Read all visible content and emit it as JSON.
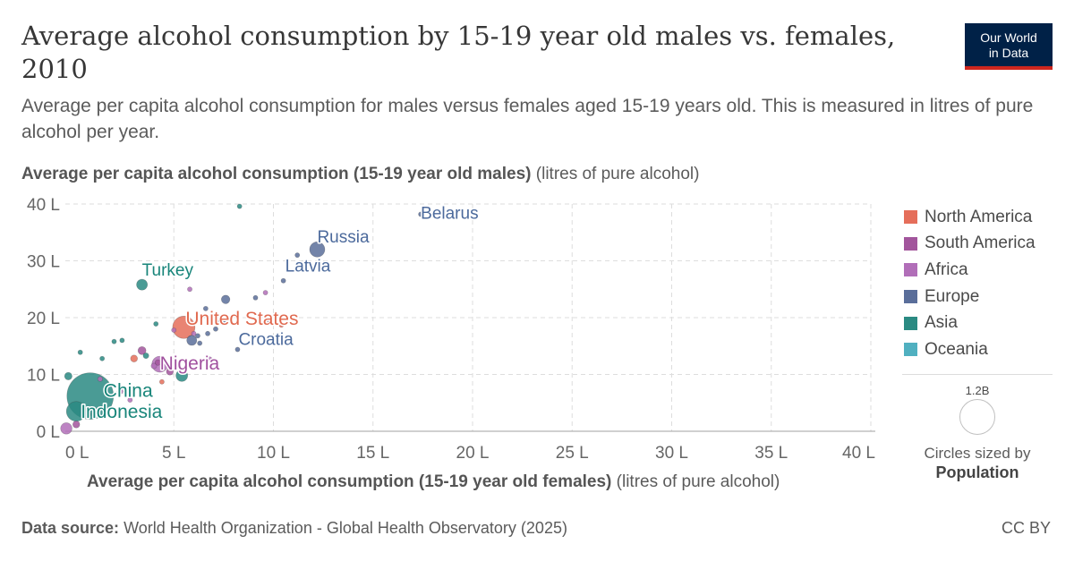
{
  "title": "Average alcohol consumption by 15-19 year old males vs. females, 2010",
  "subtitle": "Average per capita alcohol consumption for males versus females aged 15-19 years old. This is measured in litres of pure alcohol per year.",
  "logo": {
    "line1": "Our World",
    "line2": "in Data"
  },
  "footer": {
    "source_label": "Data source:",
    "source_text": "World Health Organization - Global Health Observatory (2025)",
    "license": "CC BY"
  },
  "size_legend": {
    "value": "1.2B",
    "text": "Circles sized by",
    "variable": "Population"
  },
  "colors": {
    "North America": "#e56e5a",
    "South America": "#a2559c",
    "Africa": "#b16eb8",
    "Europe": "#5a6e9a",
    "Asia": "#2a8a82",
    "Oceania": "#50b0c0"
  },
  "chart_data": {
    "type": "scatter",
    "title": "Average alcohol consumption by 15-19 year old males vs. females, 2010",
    "xlabel_bold": "Average per capita alcohol consumption (15-19 year old females)",
    "xlabel_unit": "(litres of pure alcohol)",
    "ylabel_bold": "Average per capita alcohol consumption (15-19 year old males)",
    "ylabel_unit": "(litres of pure alcohol)",
    "xlim": [
      0,
      40
    ],
    "ylim": [
      0,
      40
    ],
    "x_ticks": [
      "0 L",
      "5 L",
      "10 L",
      "15 L",
      "20 L",
      "25 L",
      "30 L",
      "35 L",
      "40 L"
    ],
    "y_ticks": [
      "0 L",
      "10 L",
      "20 L",
      "30 L",
      "40 L"
    ],
    "grid": true,
    "legend_position": "right",
    "legend": [
      "North America",
      "South America",
      "Africa",
      "Europe",
      "Asia",
      "Oceania"
    ],
    "points": [
      {
        "label": "Belarus",
        "region": "Europe",
        "x": 17.4,
        "y": 38.2,
        "pop": 0.0095
      },
      {
        "label": "Russia",
        "region": "Europe",
        "x": 12.2,
        "y": 32.0,
        "pop": 0.143
      },
      {
        "label": "Latvia",
        "region": "Europe",
        "x": 10.5,
        "y": 26.5,
        "pop": 0.002
      },
      {
        "label": "Turkey",
        "region": "Asia",
        "x": 3.4,
        "y": 25.8,
        "pop": 0.073
      },
      {
        "label": "United States",
        "region": "North America",
        "x": 5.5,
        "y": 18.3,
        "pop": 0.309
      },
      {
        "label": "Nigeria",
        "region": "Africa",
        "x": 4.3,
        "y": 11.8,
        "pop": 0.159
      },
      {
        "label": "Croatia",
        "region": "Europe",
        "x": 8.2,
        "y": 14.4,
        "pop": 0.0043
      },
      {
        "label": "China",
        "region": "Asia",
        "x": 0.8,
        "y": 6.2,
        "pop": 1.34
      },
      {
        "label": "Indonesia",
        "region": "Asia",
        "x": 0.1,
        "y": 3.5,
        "pop": 0.242
      },
      {
        "label": "",
        "region": "Asia",
        "x": 8.3,
        "y": 39.6,
        "pop": 0.005
      },
      {
        "label": "",
        "region": "Europe",
        "x": 11.2,
        "y": 31.0,
        "pop": 0.005
      },
      {
        "label": "",
        "region": "Europe",
        "x": 9.1,
        "y": 23.5,
        "pop": 0.006
      },
      {
        "label": "",
        "region": "Africa",
        "x": 9.6,
        "y": 24.4,
        "pop": 0.008
      },
      {
        "label": "",
        "region": "Africa",
        "x": 5.8,
        "y": 25.0,
        "pop": 0.01
      },
      {
        "label": "",
        "region": "Europe",
        "x": 7.6,
        "y": 23.2,
        "pop": 0.045
      },
      {
        "label": "",
        "region": "Europe",
        "x": 6.6,
        "y": 21.6,
        "pop": 0.008
      },
      {
        "label": "",
        "region": "Europe",
        "x": 7.3,
        "y": 19.2,
        "pop": 0.009
      },
      {
        "label": "",
        "region": "Europe",
        "x": 7.1,
        "y": 18.0,
        "pop": 0.01
      },
      {
        "label": "",
        "region": "Europe",
        "x": 6.7,
        "y": 17.2,
        "pop": 0.005
      },
      {
        "label": "",
        "region": "Europe",
        "x": 6.2,
        "y": 16.8,
        "pop": 0.004
      },
      {
        "label": "",
        "region": "Europe",
        "x": 7.6,
        "y": 19.3,
        "pop": 0.01
      },
      {
        "label": "",
        "region": "Europe",
        "x": 5.9,
        "y": 16.0,
        "pop": 0.062
      },
      {
        "label": "",
        "region": "Europe",
        "x": 6.3,
        "y": 15.5,
        "pop": 0.011
      },
      {
        "label": "",
        "region": "Africa",
        "x": 6.0,
        "y": 17.2,
        "pop": 0.01
      },
      {
        "label": "",
        "region": "Africa",
        "x": 5.0,
        "y": 17.8,
        "pop": 0.01
      },
      {
        "label": "",
        "region": "North America",
        "x": 10.4,
        "y": 18.7,
        "pop": 0.003
      },
      {
        "label": "",
        "region": "Europe",
        "x": 9.8,
        "y": 19.5,
        "pop": 0.005
      },
      {
        "label": "",
        "region": "Asia",
        "x": 4.1,
        "y": 18.9,
        "pop": 0.006
      },
      {
        "label": "",
        "region": "South America",
        "x": 3.4,
        "y": 14.2,
        "pop": 0.04
      },
      {
        "label": "",
        "region": "Asia",
        "x": 2.4,
        "y": 16.0,
        "pop": 0.01
      },
      {
        "label": "",
        "region": "Asia",
        "x": 2.0,
        "y": 15.8,
        "pop": 0.005
      },
      {
        "label": "",
        "region": "North America",
        "x": 3.0,
        "y": 12.8,
        "pop": 0.03
      },
      {
        "label": "",
        "region": "Asia",
        "x": 3.6,
        "y": 13.3,
        "pop": 0.02
      },
      {
        "label": "",
        "region": "Africa",
        "x": 4.0,
        "y": 11.5,
        "pop": 0.02
      },
      {
        "label": "",
        "region": "South America",
        "x": 4.2,
        "y": 12.1,
        "pop": 0.02
      },
      {
        "label": "",
        "region": "South America",
        "x": 4.8,
        "y": 10.5,
        "pop": 0.03
      },
      {
        "label": "",
        "region": "Asia",
        "x": 5.4,
        "y": 9.8,
        "pop": 0.085
      },
      {
        "label": "",
        "region": "North America",
        "x": 4.4,
        "y": 8.7,
        "pop": 0.01
      },
      {
        "label": "",
        "region": "Africa",
        "x": 6.8,
        "y": 12.7,
        "pop": 0.01
      },
      {
        "label": "",
        "region": "Africa",
        "x": 2.3,
        "y": 7.0,
        "pop": 0.02
      },
      {
        "label": "",
        "region": "Africa",
        "x": 1.3,
        "y": 9.2,
        "pop": 0.015
      },
      {
        "label": "",
        "region": "Asia",
        "x": -0.3,
        "y": 9.7,
        "pop": 0.035
      },
      {
        "label": "",
        "region": "Asia",
        "x": 0.3,
        "y": 13.9,
        "pop": 0.005
      },
      {
        "label": "",
        "region": "Asia",
        "x": 1.4,
        "y": 12.8,
        "pop": 0.005
      },
      {
        "label": "",
        "region": "North America",
        "x": 2.6,
        "y": 6.5,
        "pop": 0.01
      },
      {
        "label": "",
        "region": "Africa",
        "x": 2.8,
        "y": 5.5,
        "pop": 0.01
      },
      {
        "label": "",
        "region": "South America",
        "x": 0.1,
        "y": 1.2,
        "pop": 0.03
      },
      {
        "label": "",
        "region": "Africa",
        "x": -0.4,
        "y": 0.5,
        "pop": 0.08
      },
      {
        "label": "",
        "region": "Asia",
        "x": 0.6,
        "y": 3.0,
        "pop": 0.05
      }
    ]
  }
}
